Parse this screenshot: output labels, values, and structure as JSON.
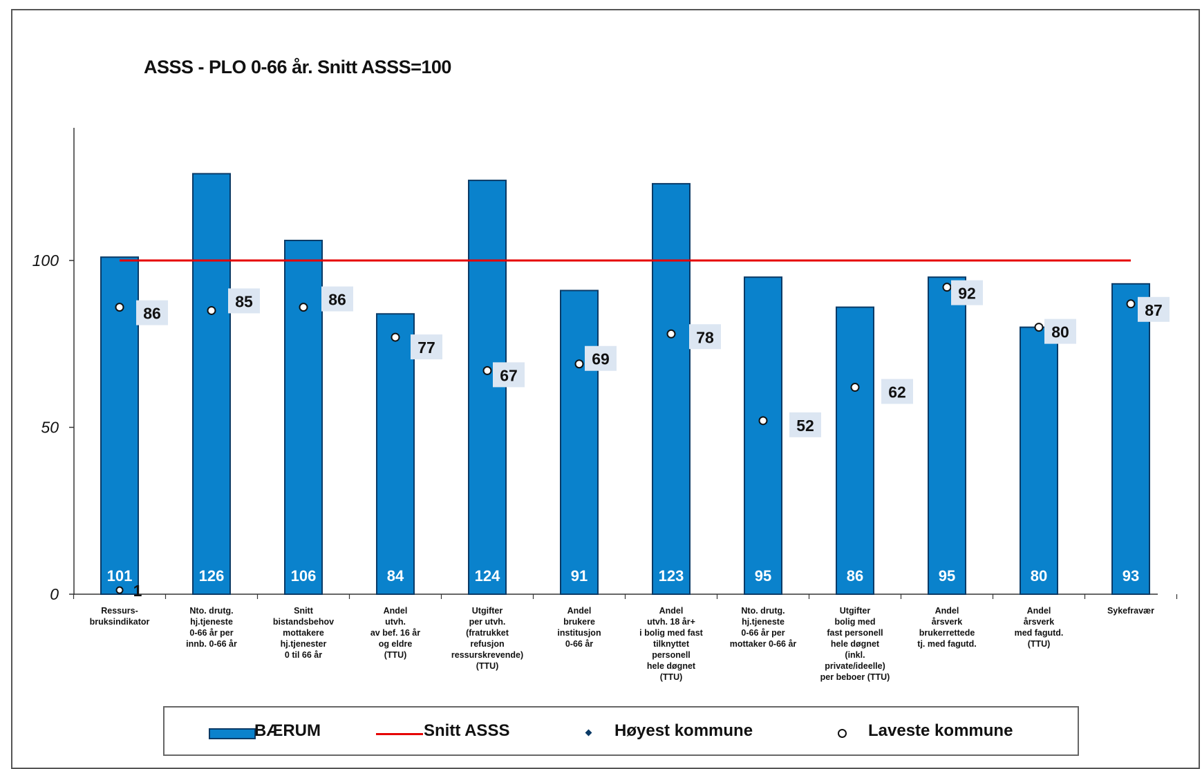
{
  "chart_data": {
    "type": "bar",
    "title": "ASSS - PLO 0-66 år.  Snitt ASSS=100",
    "categories": [
      [
        "Ressurs-",
        "bruksindikator"
      ],
      [
        "Nto. drutg.",
        "hj.tjeneste",
        "0-66 år per",
        "innb. 0-66 år"
      ],
      [
        "Snitt",
        "bistandsbehov",
        "mottakere",
        "hj.tjenester",
        "0 til 66 år"
      ],
      [
        "Andel",
        "utvh.",
        "av bef. 16 år",
        "og eldre",
        "(TTU)"
      ],
      [
        "Utgifter",
        "per utvh.",
        "(fratrukket",
        "refusjon",
        "ressurskrevende)",
        "(TTU)"
      ],
      [
        "Andel",
        "brukere",
        "institusjon",
        "0-66 år"
      ],
      [
        "Andel",
        "utvh. 18 år+",
        "i bolig med fast",
        "tilknyttet",
        "personell",
        "hele døgnet",
        "(TTU)"
      ],
      [
        "Nto. drutg.",
        "hj.tjeneste",
        "0-66 år per",
        "mottaker 0-66 år"
      ],
      [
        "Utgifter",
        "bolig med",
        "fast personell",
        "hele døgnet",
        "(inkl.",
        "private/ideelle)",
        "per beboer (TTU)"
      ],
      [
        "Andel",
        "årsverk",
        "brukerrettede",
        "tj. med fagutd."
      ],
      [
        "Andel",
        "årsverk",
        "med fagutd.",
        "(TTU)"
      ],
      [
        "Sykefravær"
      ]
    ],
    "series": [
      {
        "name": "BÆRUM",
        "type": "bar",
        "color": "#0a82cc",
        "values": [
          101,
          126,
          106,
          84,
          124,
          91,
          123,
          95,
          86,
          95,
          80,
          93
        ]
      },
      {
        "name": "Snitt ASSS",
        "type": "line",
        "color": "#e60000",
        "value": 100
      },
      {
        "name": "Høyest kommune",
        "type": "marker",
        "values": [
          1,
          null,
          null,
          null,
          null,
          null,
          null,
          null,
          null,
          null,
          null,
          null
        ]
      },
      {
        "name": "Laveste kommune",
        "type": "marker",
        "values": [
          86,
          85,
          86,
          77,
          67,
          69,
          78,
          52,
          62,
          92,
          80,
          87
        ]
      }
    ],
    "yticks": [
      "0",
      "50",
      "100"
    ],
    "ylim": [
      0,
      140
    ],
    "grid": false,
    "legend_position": "bottom",
    "value_label_bg": "#0a82cc",
    "low_label_bg": "#dce6f2"
  },
  "legend": {
    "baerum": "BÆRUM",
    "snitt": "Snitt ASSS",
    "hoyest": "Høyest kommune",
    "laveste": "Laveste kommune"
  }
}
